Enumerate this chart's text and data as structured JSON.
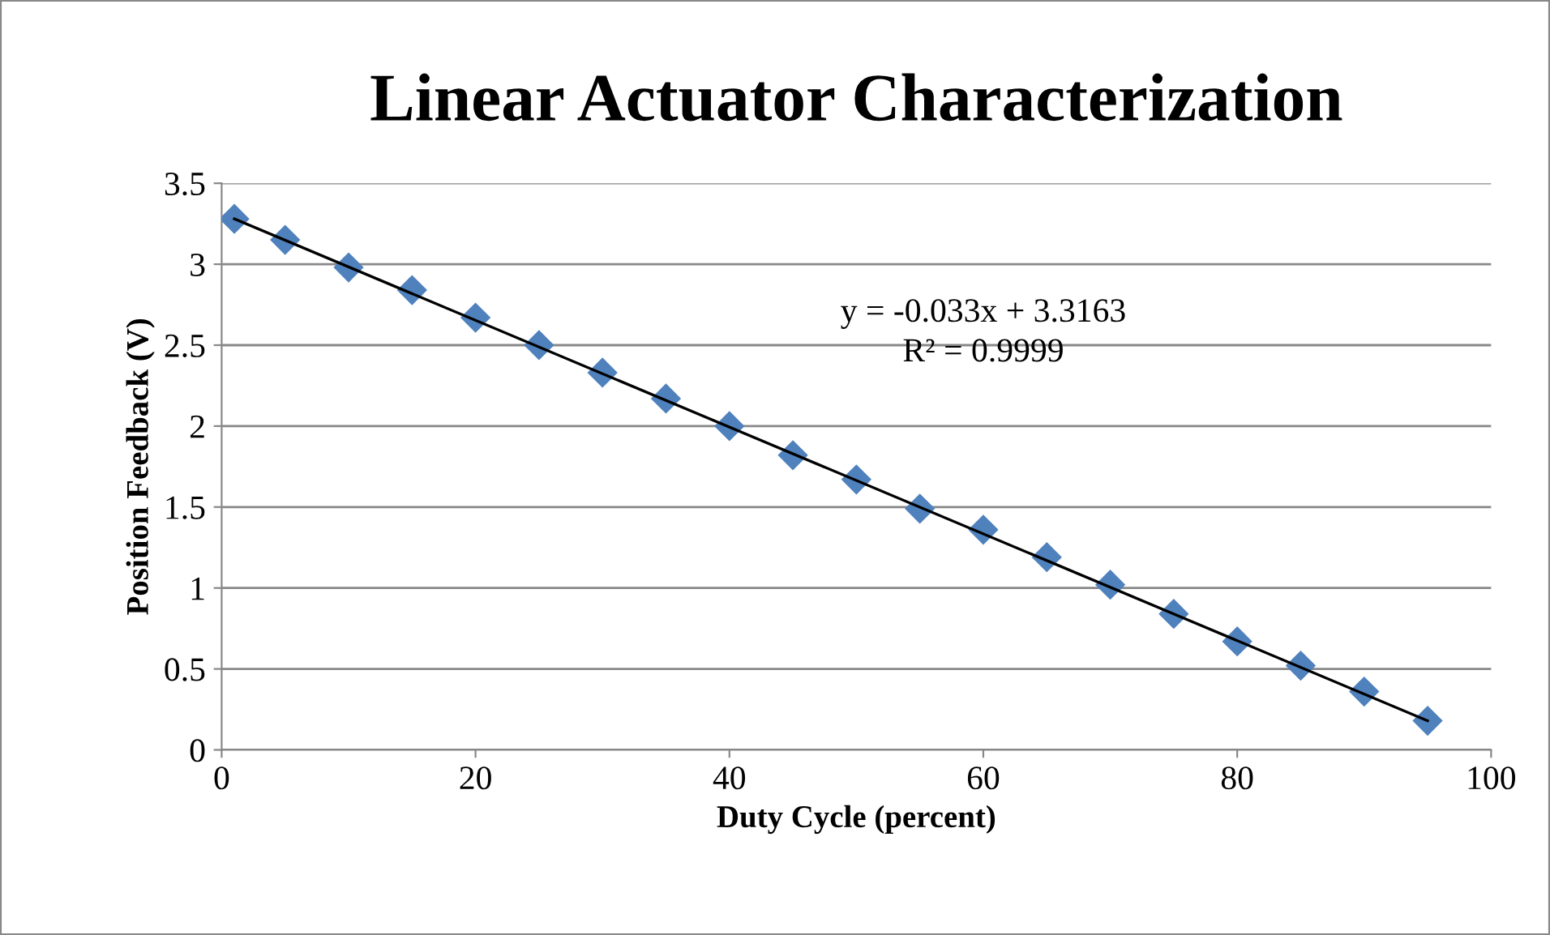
{
  "chart_data": {
    "type": "scatter",
    "title": "Linear Actuator Characterization",
    "xlabel": "Duty Cycle (percent)",
    "ylabel": "Position Feedback (V)",
    "series": [
      {
        "color": "#4f81bd",
        "marker": "diamond",
        "x": [
          1,
          5,
          10,
          15,
          20,
          25,
          30,
          35,
          40,
          45,
          50,
          55,
          60,
          65,
          70,
          75,
          80,
          85,
          90,
          95
        ],
        "values": [
          3.28,
          3.15,
          2.98,
          2.84,
          2.67,
          2.5,
          2.33,
          2.17,
          2.0,
          1.82,
          1.67,
          1.49,
          1.36,
          1.19,
          1.02,
          0.84,
          0.67,
          0.52,
          0.36,
          0.18
        ]
      },
      {
        "type": "line",
        "color": "#000000",
        "marker": "none",
        "line_style": "solid",
        "x": [
          1,
          95
        ],
        "values": [
          3.28,
          0.18
        ]
      }
    ],
    "annotations": [
      "y = -0.033x + 3.3163",
      "R² = 0.9999"
    ],
    "xlim": [
      0,
      100
    ],
    "xticks": [
      0,
      20,
      40,
      60,
      80,
      100
    ],
    "ylim": [
      0,
      3.5
    ],
    "yticks": [
      0,
      0.5,
      1,
      1.5,
      2,
      2.5,
      3,
      3.5
    ],
    "grid": "y",
    "legend": false
  }
}
